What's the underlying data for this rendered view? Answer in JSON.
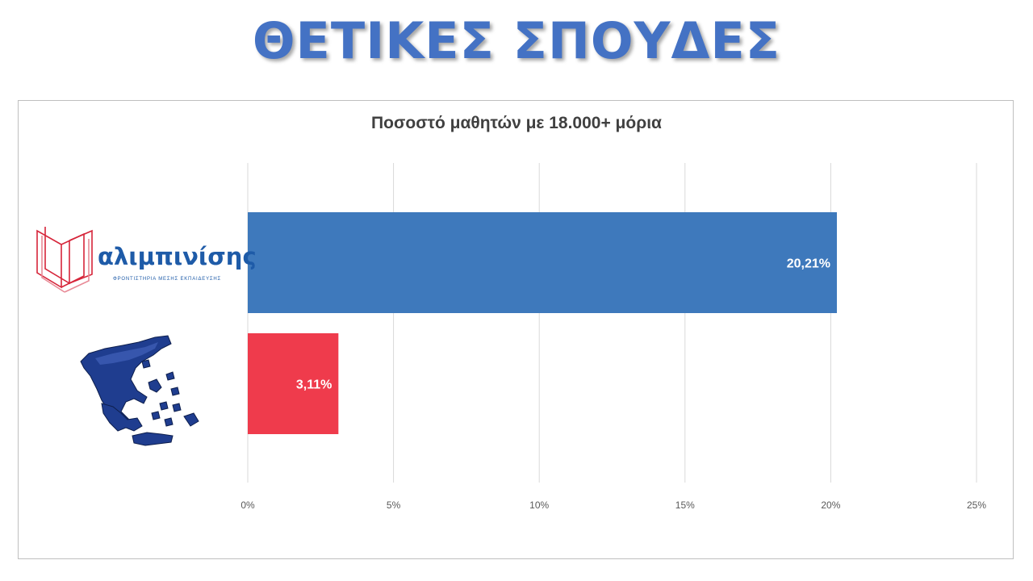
{
  "slide": {
    "title": "ΘΕΤΙΚΕΣ ΣΠΟΥΔΕΣ"
  },
  "logo": {
    "name": "αλιμπινίσης",
    "tagline": "ΦΡΟΝΤΙΣΤΗΡΙΑ ΜΕΣΗΣ ΕΚΠΑΙΔΕΥΣΗΣ"
  },
  "chart_data": {
    "type": "bar",
    "orientation": "horizontal",
    "title": "Ποσοστό μαθητών με 18.000+ μόρια",
    "xlabel": "",
    "ylabel": "",
    "categories": [
      "αλιμπινίσης",
      "greece-map-icon"
    ],
    "values": [
      20.21,
      3.11
    ],
    "value_labels": [
      "20,21%",
      "3,11%"
    ],
    "bar_colors": [
      "#3e79bc",
      "#ef3b4c"
    ],
    "xlim": [
      0,
      25
    ],
    "ticks": [
      0,
      5,
      10,
      15,
      20,
      25
    ],
    "tick_labels": [
      "0%",
      "5%",
      "10%",
      "15%",
      "20%",
      "25%"
    ],
    "grid": true,
    "legend": "none"
  }
}
